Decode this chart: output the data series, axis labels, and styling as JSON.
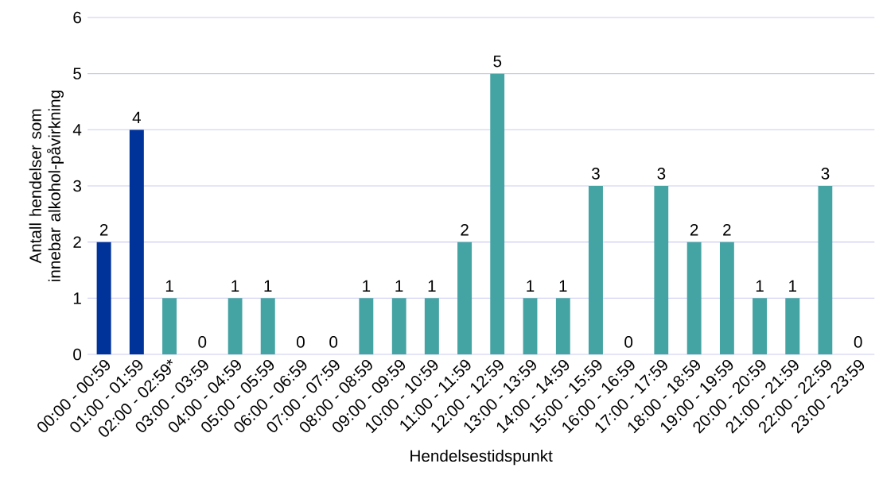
{
  "chart_data": {
    "type": "bar",
    "xlabel": "Hendelsestidspunkt",
    "ylabel": "Antall hendelser som innebar alkohol-påvirkning",
    "categories": [
      "00:00 - 00:59",
      "01:00 - 01:59",
      "02:00 - 02:59*",
      "03:00 - 03:59",
      "04:00 - 04:59",
      "05:00 - 05:59",
      "06:00 - 06:59",
      "07:00 - 07:59",
      "08:00 - 08:59",
      "09:00 - 09:59",
      "10:00 - 10:59",
      "11:00 - 11:59",
      "12:00 - 12:59",
      "13:00 - 13:59",
      "14:00 - 14:59",
      "15:00 - 15:59",
      "16:00 - 16:59",
      "17:00 - 17:59",
      "18:00 - 18:59",
      "19:00 - 19:59",
      "20:00 - 20:59",
      "21:00 - 21:59",
      "22:00 - 22:59",
      "23:00 - 23:59"
    ],
    "values": [
      2,
      4,
      1,
      0,
      1,
      1,
      0,
      0,
      1,
      1,
      1,
      2,
      5,
      1,
      1,
      3,
      0,
      3,
      2,
      2,
      1,
      1,
      3,
      0
    ],
    "colors": [
      "#003399",
      "#003399",
      "#44a3a3",
      "#44a3a3",
      "#44a3a3",
      "#44a3a3",
      "#44a3a3",
      "#44a3a3",
      "#44a3a3",
      "#44a3a3",
      "#44a3a3",
      "#44a3a3",
      "#44a3a3",
      "#44a3a3",
      "#44a3a3",
      "#44a3a3",
      "#44a3a3",
      "#44a3a3",
      "#44a3a3",
      "#44a3a3",
      "#44a3a3",
      "#44a3a3",
      "#44a3a3",
      "#44a3a3"
    ],
    "ylim": [
      0,
      6
    ],
    "yticks": [
      0,
      1,
      2,
      3,
      4,
      5,
      6
    ],
    "grid": "y",
    "data_labels": true
  }
}
